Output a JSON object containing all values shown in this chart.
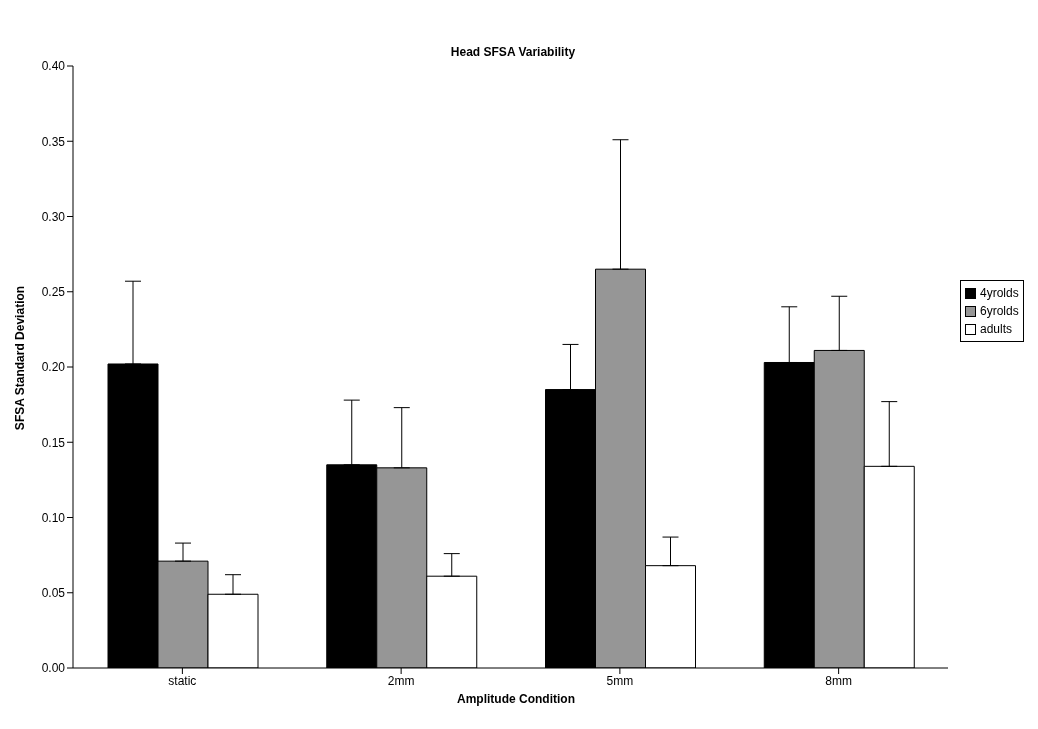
{
  "chart_data": {
    "type": "bar",
    "title": "Head SFSA Variability",
    "xlabel": "Amplitude Condition",
    "ylabel": "SFSA Standard Deviation",
    "categories": [
      "static",
      "2mm",
      "5mm",
      "8mm"
    ],
    "series": [
      {
        "name": "4yrolds",
        "color": "#000000",
        "values": [
          0.202,
          0.135,
          0.185,
          0.203
        ],
        "errors": [
          [
            0.202,
            0.257
          ],
          [
            0.135,
            0.178
          ],
          [
            0.185,
            0.215
          ],
          [
            0.203,
            0.24
          ]
        ]
      },
      {
        "name": "6yrolds",
        "color": "#969696",
        "values": [
          0.071,
          0.133,
          0.265,
          0.211
        ],
        "errors": [
          [
            0.071,
            0.083
          ],
          [
            0.133,
            0.173
          ],
          [
            0.265,
            0.351
          ],
          [
            0.211,
            0.247
          ]
        ]
      },
      {
        "name": "adults",
        "color": "#ffffff",
        "values": [
          0.049,
          0.061,
          0.068,
          0.134
        ],
        "errors": [
          [
            0.049,
            0.062
          ],
          [
            0.061,
            0.076
          ],
          [
            0.068,
            0.087
          ],
          [
            0.134,
            0.177
          ]
        ]
      }
    ],
    "ylim": [
      0,
      0.4
    ],
    "yticks": [
      {
        "value": 0,
        "label": "0.00"
      },
      {
        "value": 0.05,
        "label": "0.05"
      },
      {
        "value": 0.1,
        "label": "0.10"
      },
      {
        "value": 0.15,
        "label": "0.15"
      },
      {
        "value": 0.2,
        "label": "0.20"
      },
      {
        "value": 0.25,
        "label": "0.25"
      },
      {
        "value": 0.3,
        "label": "0.30"
      },
      {
        "value": 0.35,
        "label": "0.35"
      },
      {
        "value": 0.4,
        "label": "0.40"
      }
    ],
    "grid": false,
    "legend": "right"
  }
}
